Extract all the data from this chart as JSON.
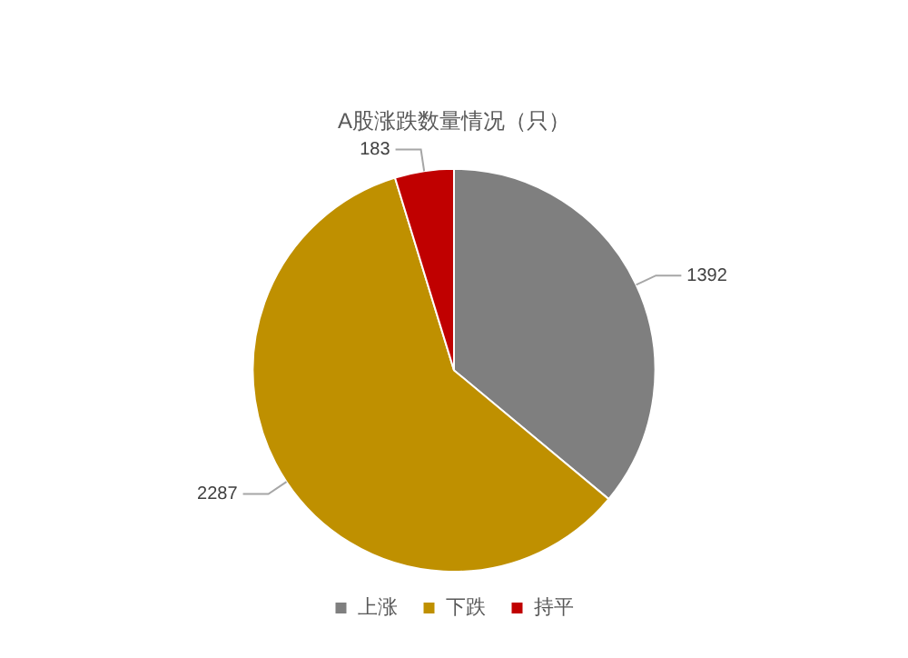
{
  "chart_data": {
    "type": "pie",
    "title": "A股涨跌数量情况（只）",
    "categories": [
      "上涨",
      "下跌",
      "持平"
    ],
    "values": [
      1392,
      2287,
      183
    ],
    "colors": [
      "#7f7f7f",
      "#bf9000",
      "#c00000"
    ],
    "data_labels": true,
    "legend": "bottom"
  }
}
